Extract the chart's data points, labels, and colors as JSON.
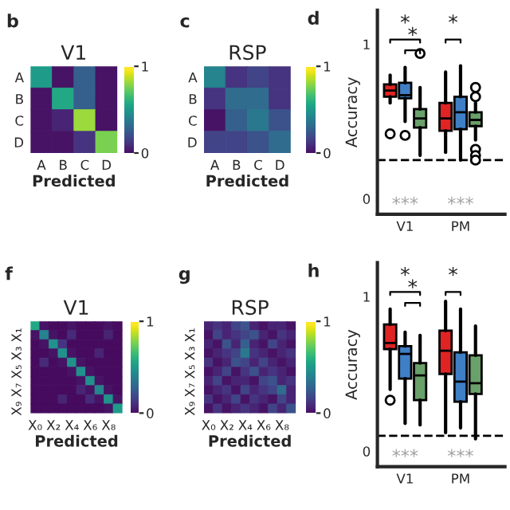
{
  "chart_data": [
    {
      "type": "heatmap",
      "title": "V1",
      "xlabel": "Predicted",
      "annotations": [
        "b"
      ],
      "categories": [
        "A",
        "B",
        "C",
        "D"
      ],
      "y_categories": [
        "A",
        "B",
        "C",
        "D"
      ],
      "clim": [
        0,
        1
      ],
      "cticks": [
        0,
        1
      ],
      "cells": [
        [
          0.55,
          0.05,
          0.3,
          0.05
        ],
        [
          0.05,
          0.6,
          0.3,
          0.05
        ],
        [
          0.05,
          0.1,
          0.85,
          0.05
        ],
        [
          0.05,
          0.05,
          0.15,
          0.8
        ]
      ]
    },
    {
      "type": "heatmap",
      "title": "RSP",
      "xlabel": "Predicted",
      "annotations": [
        "c"
      ],
      "categories": [
        "A",
        "B",
        "C",
        "D"
      ],
      "y_categories": [
        "A",
        "B",
        "C",
        "D"
      ],
      "clim": [
        0,
        1
      ],
      "cticks": [
        0,
        1
      ],
      "cells": [
        [
          0.45,
          0.15,
          0.2,
          0.15
        ],
        [
          0.15,
          0.35,
          0.35,
          0.15
        ],
        [
          0.05,
          0.3,
          0.4,
          0.25
        ],
        [
          0.2,
          0.2,
          0.25,
          0.35
        ]
      ]
    },
    {
      "type": "box",
      "ylabel": "Accuracy",
      "annotations": [
        "d",
        "*",
        "*",
        "*",
        "***",
        "***"
      ],
      "categories": [
        "V1",
        "PM"
      ],
      "ylim": [
        -0.1,
        1.22
      ],
      "yticks": [
        0,
        1
      ],
      "ref_lines": [
        {
          "axis": "y",
          "value": 0.25,
          "line_style": "dashed"
        }
      ],
      "series": [
        {
          "color": "#e02424",
          "boxes": [
            {
              "low": 0.62,
              "q1": 0.66,
              "median": 0.7,
              "q3": 0.74,
              "high": 0.8,
              "outliers": [
                0.42
              ]
            },
            {
              "low": 0.3,
              "q1": 0.44,
              "median": 0.52,
              "q3": 0.62,
              "high": 0.82
            }
          ]
        },
        {
          "color": "#3f7fc6",
          "boxes": [
            {
              "low": 0.5,
              "q1": 0.65,
              "median": 0.67,
              "q3": 0.75,
              "high": 0.85,
              "outliers": [
                0.41
              ]
            },
            {
              "low": 0.25,
              "q1": 0.45,
              "median": 0.56,
              "q3": 0.66,
              "high": 0.86
            }
          ]
        },
        {
          "color": "#6aa06a",
          "boxes": [
            {
              "low": 0.28,
              "q1": 0.46,
              "median": 0.52,
              "q3": 0.58,
              "high": 0.72,
              "outliers": [
                0.94
              ]
            },
            {
              "low": 0.38,
              "q1": 0.47,
              "median": 0.51,
              "q3": 0.56,
              "high": 0.62,
              "outliers": [
                0.32,
                0.28,
                0.25,
                0.72,
                0.66
              ]
            }
          ]
        }
      ]
    },
    {
      "type": "heatmap",
      "title": "V1",
      "xlabel": "Predicted",
      "annotations": [
        "f"
      ],
      "categories": [
        "X₀",
        null,
        "X₂",
        null,
        "X₄",
        null,
        "X₆",
        null,
        "X₈",
        null
      ],
      "y_categories": [
        null,
        "X₁",
        null,
        "X₃",
        null,
        "X₅",
        null,
        "X₇",
        null,
        "X₉"
      ],
      "clim": [
        0,
        1
      ],
      "cticks": [
        0,
        1
      ],
      "cells": [
        [
          0.6,
          0.05,
          0.03,
          0.03,
          0.05,
          0.03,
          0.03,
          0.03,
          0.05,
          0.03
        ],
        [
          0.05,
          0.45,
          0.05,
          0.03,
          0.12,
          0.03,
          0.03,
          0.03,
          0.1,
          0.03
        ],
        [
          0.03,
          0.05,
          0.5,
          0.15,
          0.03,
          0.03,
          0.03,
          0.03,
          0.03,
          0.03
        ],
        [
          0.03,
          0.03,
          0.05,
          0.5,
          0.05,
          0.03,
          0.03,
          0.1,
          0.03,
          0.03
        ],
        [
          0.03,
          0.12,
          0.03,
          0.05,
          0.5,
          0.05,
          0.03,
          0.03,
          0.03,
          0.03
        ],
        [
          0.03,
          0.03,
          0.03,
          0.03,
          0.05,
          0.5,
          0.05,
          0.03,
          0.03,
          0.03
        ],
        [
          0.03,
          0.03,
          0.03,
          0.03,
          0.03,
          0.05,
          0.5,
          0.05,
          0.03,
          0.03
        ],
        [
          0.03,
          0.03,
          0.03,
          0.03,
          0.03,
          0.1,
          0.05,
          0.45,
          0.05,
          0.03
        ],
        [
          0.03,
          0.03,
          0.03,
          0.1,
          0.03,
          0.03,
          0.12,
          0.05,
          0.5,
          0.05
        ],
        [
          0.03,
          0.03,
          0.03,
          0.03,
          0.03,
          0.03,
          0.03,
          0.03,
          0.05,
          0.55
        ]
      ]
    },
    {
      "type": "heatmap",
      "title": "RSP",
      "xlabel": "Predicted",
      "annotations": [
        "g"
      ],
      "categories": [
        "X₀",
        null,
        "X₂",
        null,
        "X₄",
        null,
        "X₆",
        null,
        "X₈",
        null
      ],
      "y_categories": [
        null,
        "X₁",
        null,
        "X₃",
        null,
        "X₅",
        null,
        "X₇",
        null,
        "X₉"
      ],
      "clim": [
        0,
        1
      ],
      "cticks": [
        0,
        1
      ],
      "cells": [
        [
          0.1,
          0.15,
          0.1,
          0.2,
          0.25,
          0.1,
          0.05,
          0.1,
          0.1,
          0.05
        ],
        [
          0.05,
          0.2,
          0.1,
          0.15,
          0.2,
          0.25,
          0.1,
          0.05,
          0.15,
          0.1
        ],
        [
          0.1,
          0.05,
          0.25,
          0.1,
          0.3,
          0.1,
          0.05,
          0.2,
          0.1,
          0.05
        ],
        [
          0.05,
          0.1,
          0.15,
          0.2,
          0.4,
          0.15,
          0.1,
          0.05,
          0.1,
          0.15
        ],
        [
          0.15,
          0.05,
          0.1,
          0.25,
          0.2,
          0.1,
          0.2,
          0.1,
          0.05,
          0.1
        ],
        [
          0.05,
          0.1,
          0.2,
          0.05,
          0.15,
          0.25,
          0.1,
          0.15,
          0.1,
          0.05
        ],
        [
          0.1,
          0.2,
          0.05,
          0.1,
          0.1,
          0.05,
          0.2,
          0.25,
          0.1,
          0.15
        ],
        [
          0.05,
          0.1,
          0.15,
          0.05,
          0.2,
          0.1,
          0.15,
          0.2,
          0.35,
          0.1
        ],
        [
          0.15,
          0.05,
          0.1,
          0.2,
          0.05,
          0.15,
          0.1,
          0.05,
          0.2,
          0.1
        ],
        [
          0.05,
          0.15,
          0.05,
          0.1,
          0.15,
          0.1,
          0.05,
          0.2,
          0.1,
          0.25
        ]
      ]
    },
    {
      "type": "box",
      "ylabel": "Accuracy",
      "annotations": [
        "h",
        "*",
        "*",
        "*",
        "***",
        "***"
      ],
      "categories": [
        "V1",
        "PM"
      ],
      "ylim": [
        -0.1,
        1.22
      ],
      "yticks": [
        0,
        1
      ],
      "ref_lines": [
        {
          "axis": "y",
          "value": 0.1,
          "line_style": "dashed"
        }
      ],
      "series": [
        {
          "color": "#e02424",
          "boxes": [
            {
              "low": 0.4,
              "q1": 0.66,
              "median": 0.7,
              "q3": 0.82,
              "high": 0.92,
              "outliers": [
                0.33
              ]
            },
            {
              "low": 0.12,
              "q1": 0.5,
              "median": 0.65,
              "q3": 0.78,
              "high": 0.97
            }
          ]
        },
        {
          "color": "#3f7fc6",
          "boxes": [
            {
              "low": 0.18,
              "q1": 0.47,
              "median": 0.63,
              "q3": 0.68,
              "high": 0.77
            },
            {
              "low": 0.15,
              "q1": 0.32,
              "median": 0.45,
              "q3": 0.64,
              "high": 0.92
            }
          ]
        },
        {
          "color": "#6aa06a",
          "boxes": [
            {
              "low": 0.17,
              "q1": 0.33,
              "median": 0.49,
              "q3": 0.57,
              "high": 0.75
            },
            {
              "low": 0.08,
              "q1": 0.37,
              "median": 0.44,
              "q3": 0.62,
              "high": 0.81
            }
          ]
        }
      ]
    }
  ]
}
